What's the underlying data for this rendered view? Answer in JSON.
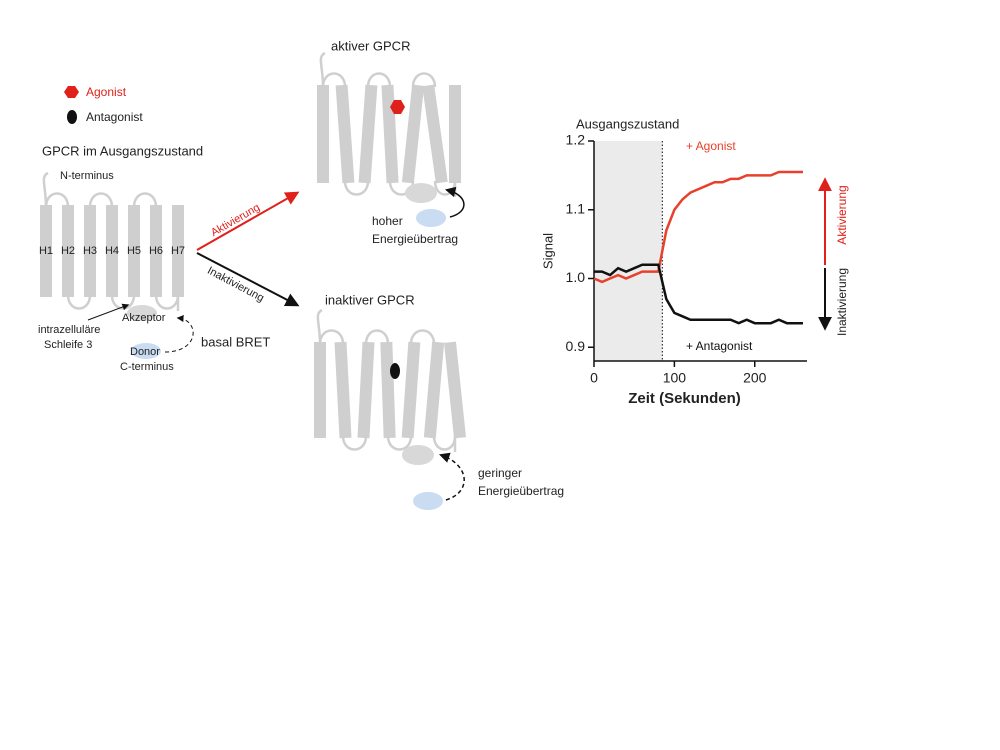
{
  "legend": {
    "agonist": "Agonist",
    "antagonist": "Antagonist"
  },
  "resting": {
    "title": "GPCR im Ausgangszustand",
    "n_terminus": "N-terminus",
    "helices": [
      "H1",
      "H2",
      "H3",
      "H4",
      "H5",
      "H6",
      "H7"
    ],
    "acceptor": "Akzeptor",
    "loop_label": [
      "intrazelluläre",
      "Schleife 3"
    ],
    "donor": "Donor",
    "c_terminus": "C-terminus",
    "bret": "basal BRET"
  },
  "arrows": {
    "activation": "Aktivierung",
    "inactivation": "Inaktivierung"
  },
  "active": {
    "title": "aktiver GPCR",
    "transfer": [
      "hoher",
      "Energieübertrag"
    ]
  },
  "inactive": {
    "title": "inaktiver GPCR",
    "transfer": [
      "geringer",
      "Energieübertrag"
    ]
  },
  "chart_data": {
    "type": "line",
    "title": "Ausgangszustand",
    "xlabel": "Zeit (Sekunden)",
    "ylabel": "Signal",
    "x": [
      0,
      10,
      20,
      30,
      40,
      50,
      60,
      70,
      80,
      90,
      100,
      110,
      120,
      130,
      140,
      150,
      160,
      170,
      180,
      190,
      200,
      210,
      220,
      230,
      240,
      250,
      260
    ],
    "series": [
      {
        "name": "+ Agonist",
        "color": "#e8402c",
        "values": [
          1.0,
          0.995,
          1.0,
          1.005,
          1.0,
          1.005,
          1.01,
          1.01,
          1.01,
          1.07,
          1.1,
          1.115,
          1.125,
          1.13,
          1.135,
          1.14,
          1.14,
          1.145,
          1.145,
          1.15,
          1.15,
          1.15,
          1.15,
          1.155,
          1.155,
          1.155,
          1.155
        ]
      },
      {
        "name": "+ Antagonist",
        "color": "#111111",
        "values": [
          1.01,
          1.01,
          1.005,
          1.015,
          1.01,
          1.015,
          1.02,
          1.02,
          1.02,
          0.97,
          0.95,
          0.945,
          0.94,
          0.94,
          0.94,
          0.94,
          0.94,
          0.94,
          0.935,
          0.94,
          0.935,
          0.935,
          0.935,
          0.94,
          0.935,
          0.935,
          0.935
        ]
      }
    ],
    "xlim": [
      0,
      265
    ],
    "xticks": [
      0,
      100,
      200
    ],
    "ylim": [
      0.88,
      1.2
    ],
    "yticks": [
      0.9,
      {
        "value": 1,
        "label": "1.0"
      },
      1.1,
      1.2
    ],
    "shaded_xlim": [
      0,
      85
    ],
    "side_labels": {
      "up": "Aktivierung",
      "down": "Inaktivierung"
    }
  }
}
